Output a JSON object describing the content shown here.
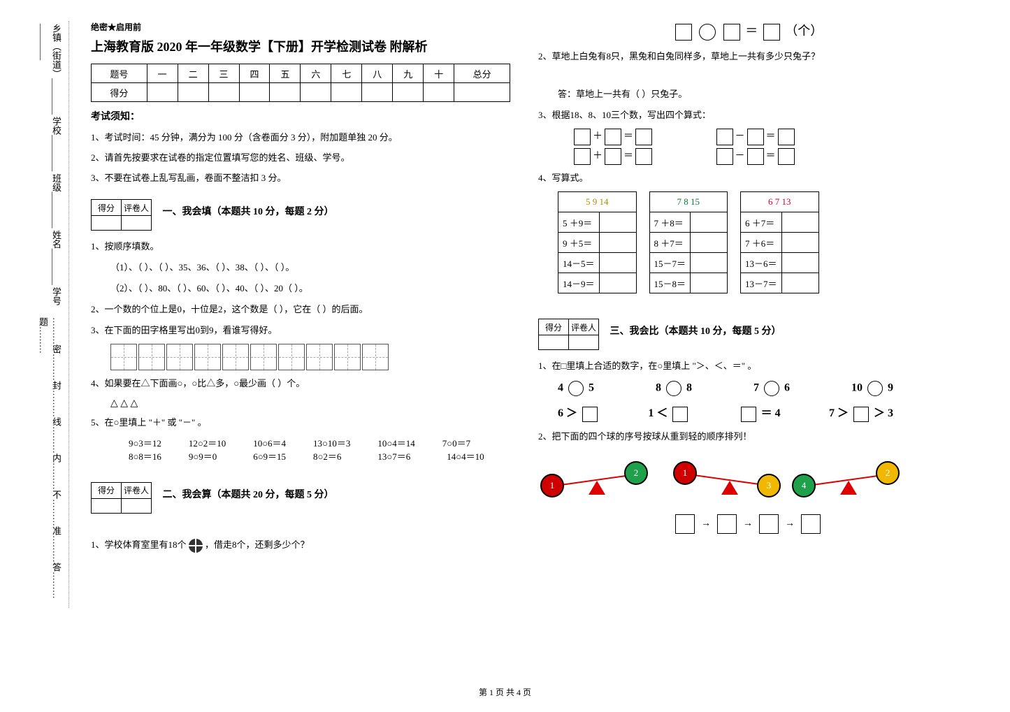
{
  "side": {
    "labels": "乡镇（街道）________ 学校________ 班级________ 姓名________ 学号________",
    "seal": "………密………封………线………内………不………准………答………题………"
  },
  "header": {
    "secret": "绝密★启用前",
    "title": "上海教育版 2020 年一年级数学【下册】开学检测试卷  附解析"
  },
  "score_table": {
    "row1": [
      "题号",
      "一",
      "二",
      "三",
      "四",
      "五",
      "六",
      "七",
      "八",
      "九",
      "十",
      "总分"
    ],
    "row2_label": "得分"
  },
  "notice": {
    "title": "考试须知：",
    "items": [
      "1、考试时间：45 分钟，满分为 100 分（含卷面分 3 分），附加题单独 20 分。",
      "2、请首先按要求在试卷的指定位置填写您的姓名、班级、学号。",
      "3、不要在试卷上乱写乱画，卷面不整洁扣 3 分。"
    ]
  },
  "scorebox": {
    "c1": "得分",
    "c2": "评卷人"
  },
  "section1": {
    "title": "一、我会填（本题共 10 分，每题 2 分）",
    "q1": "1、按顺序填数。",
    "q1a": "（1）、（  ）、（  ）、35、36、（  ）、38、（  ）、（  ）。",
    "q1b": "（2）、（  ）、80、（  ）、60、（  ）、40、（  ）、20（  ）。",
    "q2": "2、一个数的个位上是0，十位是2，这个数是（      ），它在（      ）的后面。",
    "q3": "3、在下面的田字格里写出0到9，看谁写得好。",
    "q4": "4、如果要在△下面画○，○比△多，○最少画（     ）个。",
    "q4_shapes": "△  △  △",
    "q5": "5、在○里填上 \"＋\" 或 \"－\" 。",
    "q5_rows": [
      "　　9○3＝12　　　12○2＝10　　　10○6＝4　　　13○10＝3　　　10○4＝14　　　7○0＝7",
      "　　8○8＝16　　　9○9＝0　　　　6○9＝15　　　8○2＝6　　　　13○7＝6　　　　14○4＝10"
    ]
  },
  "section2": {
    "title": "二、我会算（本题共 20 分，每题 5 分）",
    "q1": "1、学校体育室里有18个　　　　，借走8个，还剩多少个？",
    "eq_tail": "（个）",
    "q2": "2、草地上白兔有8只，黑兔和白兔同样多，草地上一共有多少只兔子？",
    "q2_ans": "答：草地上一共有（    ）只兔子。",
    "q3": "3、根据18、8、10三个数，写出四个算式：",
    "q4": "4、写算式。"
  },
  "calc_tables": [
    {
      "header": [
        "5",
        "9",
        "14"
      ],
      "rows": [
        "5 ＋9＝",
        "9 ＋5＝",
        "14－5＝",
        "14－9＝"
      ],
      "header_color": "#b58b00"
    },
    {
      "header": [
        "7",
        "8",
        "15"
      ],
      "rows": [
        "7 ＋8＝",
        "8 ＋7＝",
        "15－7＝",
        "15－8＝"
      ],
      "header_color": "#0a7a3a"
    },
    {
      "header": [
        "6",
        "7",
        "13"
      ],
      "rows": [
        "6 ＋7＝",
        "7 ＋6＝",
        "13－6＝",
        "13－7＝"
      ],
      "header_color": "#c03"
    }
  ],
  "section3": {
    "title": "三、我会比（本题共 10 分，每题 5 分）",
    "q1": "1、在□里填上合适的数字，在○里填上 \"＞、＜、＝\" 。",
    "row1": {
      "a": "4",
      "b": "5",
      "c": "8",
      "d": "8",
      "e": "7",
      "f": "6",
      "g": "10",
      "h": "9"
    },
    "row2": {
      "a": "6 ＞",
      "b": "1 ＜",
      "c": "＝ 4",
      "d": "7 ＞",
      "e": "＞ 3"
    },
    "q2": "2、把下面的四个球的序号按球从重到轻的顺序排列！"
  },
  "balls": [
    {
      "num": "1",
      "color": "#d00000"
    },
    {
      "num": "2",
      "color": "#1fa04a"
    },
    {
      "num": "1",
      "color": "#d00000"
    },
    {
      "num": "3",
      "color": "#f0b800"
    },
    {
      "num": "4",
      "color": "#1fa04a"
    },
    {
      "num": "2",
      "color": "#f0b800"
    }
  ],
  "footer": "第 1 页  共 4 页"
}
